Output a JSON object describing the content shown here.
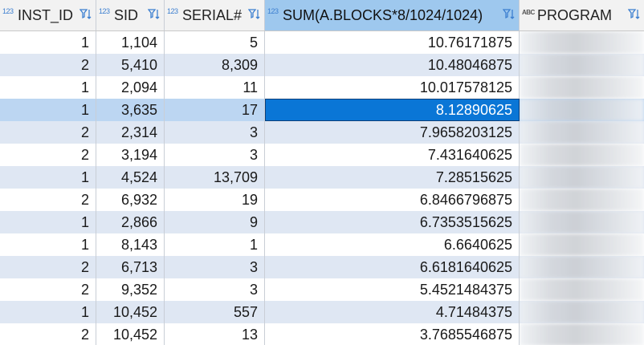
{
  "columns": [
    {
      "type_tag": "123",
      "label": "INST_ID"
    },
    {
      "type_tag": "123",
      "label": "SID"
    },
    {
      "type_tag": "123",
      "label": "SERIAL#"
    },
    {
      "type_tag": "123",
      "label": "SUM(A.BLOCKS*8/1024/1024)"
    },
    {
      "type_tag": "ABC",
      "label": "PROGRAM"
    }
  ],
  "rows": [
    {
      "inst_id": "1",
      "sid": "1,104",
      "serial": "5",
      "sum": "10.76171875"
    },
    {
      "inst_id": "2",
      "sid": "5,410",
      "serial": "8,309",
      "sum": "10.48046875"
    },
    {
      "inst_id": "1",
      "sid": "2,094",
      "serial": "11",
      "sum": "10.017578125"
    },
    {
      "inst_id": "1",
      "sid": "3,635",
      "serial": "17",
      "sum": "8.12890625"
    },
    {
      "inst_id": "2",
      "sid": "2,314",
      "serial": "3",
      "sum": "7.9658203125"
    },
    {
      "inst_id": "2",
      "sid": "3,194",
      "serial": "3",
      "sum": "7.431640625"
    },
    {
      "inst_id": "1",
      "sid": "4,524",
      "serial": "13,709",
      "sum": "7.28515625"
    },
    {
      "inst_id": "2",
      "sid": "6,932",
      "serial": "19",
      "sum": "6.8466796875"
    },
    {
      "inst_id": "1",
      "sid": "2,866",
      "serial": "9",
      "sum": "6.7353515625"
    },
    {
      "inst_id": "1",
      "sid": "8,143",
      "serial": "1",
      "sum": "6.6640625"
    },
    {
      "inst_id": "2",
      "sid": "6,713",
      "serial": "3",
      "sum": "6.6181640625"
    },
    {
      "inst_id": "2",
      "sid": "9,352",
      "serial": "3",
      "sum": "5.4521484375"
    },
    {
      "inst_id": "1",
      "sid": "10,452",
      "serial": "557",
      "sum": "4.71484375"
    },
    {
      "inst_id": "2",
      "sid": "10,452",
      "serial": "13",
      "sum": "3.7685546875"
    }
  ],
  "selection": {
    "row": 3,
    "column": 3
  },
  "colors": {
    "accent": "#0a76d6",
    "selected_header": "#9ec8ee",
    "row_stripe": "#dfe7f3"
  },
  "icons": {
    "column_type": "type-tag-icon",
    "filter": "filter-sort-icon"
  }
}
